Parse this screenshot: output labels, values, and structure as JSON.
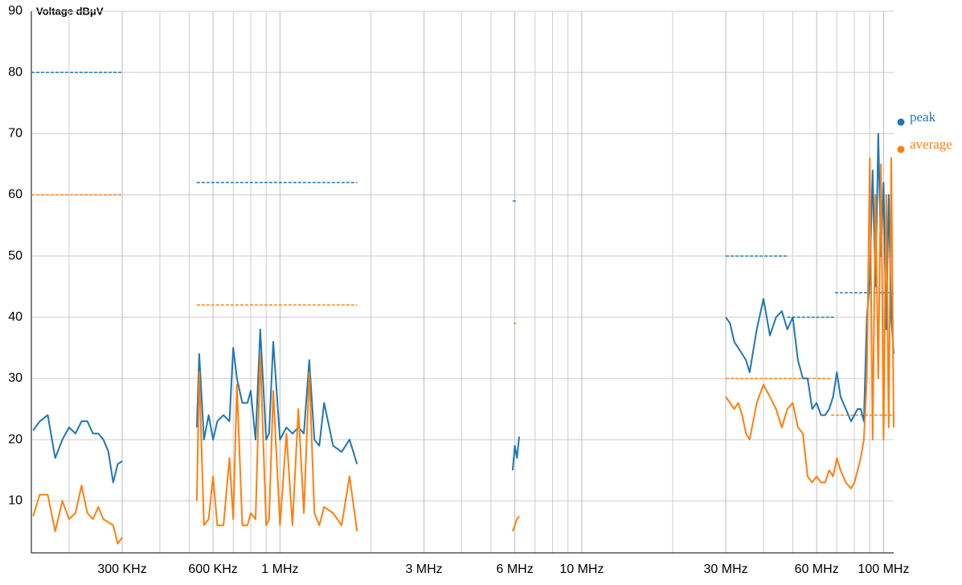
{
  "chart_data": {
    "type": "line",
    "y_axis_title": "Voltage dBμV",
    "log_x": true,
    "grid": true,
    "xlim": [
      0.15,
      108
    ],
    "ylim": [
      1.5,
      90
    ],
    "yticks": [
      10,
      20,
      30,
      40,
      50,
      60,
      70,
      80,
      90
    ],
    "xticks": [
      {
        "value": 0.3,
        "label": "300 KHz"
      },
      {
        "value": 0.6,
        "label": "600 KHz"
      },
      {
        "value": 1,
        "label": "1 MHz"
      },
      {
        "value": 3,
        "label": "3 MHz"
      },
      {
        "value": 6,
        "label": "6 MHz"
      },
      {
        "value": 10,
        "label": "10 MHz"
      },
      {
        "value": 30,
        "label": "30 MHz"
      },
      {
        "value": 60,
        "label": "60 MHz"
      },
      {
        "value": 100,
        "label": "100 MHz"
      }
    ],
    "x_minor_ticks": [
      0.2,
      0.4,
      0.5,
      0.7,
      0.8,
      0.9,
      2,
      4,
      5,
      7,
      8,
      9,
      20,
      40,
      50,
      70,
      80,
      90
    ],
    "x": [
      0.152,
      0.16,
      0.17,
      0.18,
      0.19,
      0.2,
      0.21,
      0.22,
      0.23,
      0.24,
      0.25,
      0.26,
      0.27,
      0.28,
      0.29,
      0.3,
      0.4,
      0.53,
      0.54,
      0.56,
      0.58,
      0.6,
      0.62,
      0.65,
      0.68,
      0.7,
      0.72,
      0.75,
      0.78,
      0.8,
      0.83,
      0.86,
      0.9,
      0.92,
      0.95,
      1.0,
      1.05,
      1.1,
      1.15,
      1.2,
      1.25,
      1.3,
      1.35,
      1.4,
      1.5,
      1.6,
      1.7,
      1.8,
      3,
      5.9,
      6.0,
      6.1,
      6.2,
      15,
      30,
      31,
      32,
      33,
      34,
      35,
      36,
      38,
      40,
      42,
      44,
      46,
      48,
      50,
      52,
      54,
      56,
      58,
      60,
      62,
      64,
      66,
      68,
      70,
      72,
      75,
      78,
      80,
      82,
      84,
      86,
      88,
      90,
      92,
      94,
      96,
      98,
      100,
      102,
      104,
      106,
      108
    ],
    "series": [
      {
        "name": "peak",
        "color": "#1f77b4",
        "values": [
          21.5,
          23,
          24,
          17,
          20,
          22,
          21,
          23,
          23,
          21,
          21,
          20,
          18,
          13,
          16,
          16.5,
          null,
          22,
          34,
          20,
          24,
          20,
          23,
          24,
          23,
          35,
          30,
          26,
          26,
          28,
          20,
          38,
          20,
          21,
          36,
          20,
          22,
          21,
          22,
          21,
          33,
          20,
          19,
          26,
          19,
          18,
          20,
          16,
          null,
          15,
          19,
          17,
          20.5,
          null,
          40,
          39,
          36,
          35,
          34,
          33,
          31,
          38,
          43,
          37,
          40,
          41,
          38,
          40,
          33,
          30,
          30,
          25,
          26,
          24,
          24,
          25,
          27,
          31,
          27,
          25,
          23,
          24,
          25,
          25,
          23,
          40,
          46,
          64,
          45,
          70,
          50,
          62,
          38,
          60,
          40,
          34
        ]
      },
      {
        "name": "average",
        "color": "#ff7f0e",
        "values": [
          7.5,
          11,
          11,
          5,
          10,
          7,
          8,
          12.5,
          8,
          7,
          9,
          7,
          6.5,
          6,
          3,
          4,
          null,
          10,
          31,
          6,
          7,
          14,
          6,
          6,
          17,
          7,
          29,
          6,
          6,
          8,
          7,
          34,
          6,
          7,
          28,
          6,
          21,
          6,
          25,
          8,
          31,
          8,
          6,
          9,
          8,
          6,
          14,
          5,
          null,
          5,
          6,
          7,
          7.5,
          null,
          27,
          26,
          25,
          26,
          24,
          21,
          20,
          26,
          29,
          27,
          25,
          22,
          25,
          26,
          22,
          21,
          14,
          13,
          14,
          13,
          13,
          15,
          14,
          17,
          15,
          13,
          12,
          13,
          15,
          17,
          20,
          30,
          66,
          20,
          60,
          30,
          65,
          20,
          60,
          22,
          66,
          22
        ]
      }
    ],
    "limit_lines": [
      {
        "color": "#1f77b4",
        "x": [
          0.15,
          0.3
        ],
        "y": 80
      },
      {
        "color": "#ff7f0e",
        "x": [
          0.15,
          0.3
        ],
        "y": 60
      },
      {
        "color": "#1f77b4",
        "x": [
          0.53,
          1.8
        ],
        "y": 62
      },
      {
        "color": "#ff7f0e",
        "x": [
          0.53,
          1.8
        ],
        "y": 42
      },
      {
        "color": "#1f77b4",
        "x": [
          5.9,
          6.1
        ],
        "y": 59
      },
      {
        "color": "#ff7f0e",
        "x": [
          5.95,
          6.05
        ],
        "y": 39
      },
      {
        "color": "#1f77b4",
        "x": [
          30,
          48
        ],
        "y": 50
      },
      {
        "color": "#ff7f0e",
        "x": [
          30,
          67
        ],
        "y": 30
      },
      {
        "color": "#1f77b4",
        "x": [
          48,
          69
        ],
        "y": 40
      },
      {
        "color": "#1f77b4",
        "x": [
          69,
          108
        ],
        "y": 44
      },
      {
        "color": "#ff7f0e",
        "x": [
          67,
          108
        ],
        "y": 24
      }
    ]
  }
}
